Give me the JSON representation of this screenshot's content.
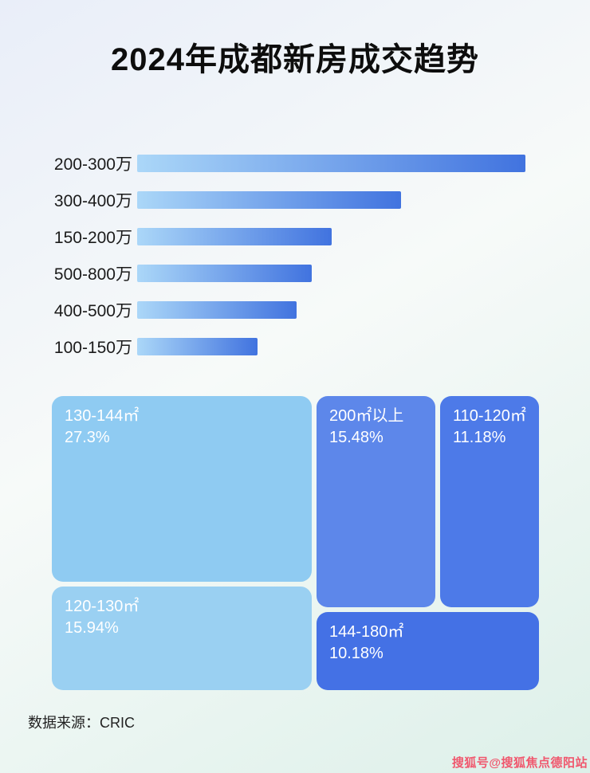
{
  "page": {
    "title": "2024年成都新房成交趋势",
    "source_label": "数据来源：CRIC",
    "watermark": "搜狐号@搜狐焦点德阳站"
  },
  "colors": {
    "bar_gradient_start": "#ABD7F8",
    "bar_gradient_end": "#4173DF",
    "watermark_pink": "#F0586E",
    "title_black": "#0D0D0D"
  },
  "chart_data": [
    {
      "type": "bar",
      "orientation": "horizontal",
      "title": "2024年成都新房成交趋势",
      "categories": [
        "200-300万",
        "300-400万",
        "150-200万",
        "500-800万",
        "400-500万",
        "100-150万"
      ],
      "values": [
        100,
        68,
        50,
        45,
        41,
        31
      ],
      "value_note": "bars carry no printed numbers; values are estimated bar lengths relative to the longest bar = 100",
      "bar_gradient": [
        "#ABD7F8",
        "#4173DF"
      ],
      "xlabel": "",
      "ylabel": "",
      "grid": false,
      "legend": "none"
    },
    {
      "type": "treemap",
      "items": [
        {
          "label": "130-144㎡",
          "value": 27.3,
          "display": "27.3%",
          "color": "#8FCBF2"
        },
        {
          "label": "120-130㎡",
          "value": 15.94,
          "display": "15.94%",
          "color": "#9AD0F2"
        },
        {
          "label": "200㎡以上",
          "value": 15.48,
          "display": "15.48%",
          "color": "#5D87EA"
        },
        {
          "label": "110-120㎡",
          "value": 11.18,
          "display": "11.18%",
          "color": "#4D7AE8"
        },
        {
          "label": "144-180㎡",
          "value": 10.18,
          "display": "10.18%",
          "color": "#4471E5"
        }
      ],
      "legend": "none"
    }
  ]
}
